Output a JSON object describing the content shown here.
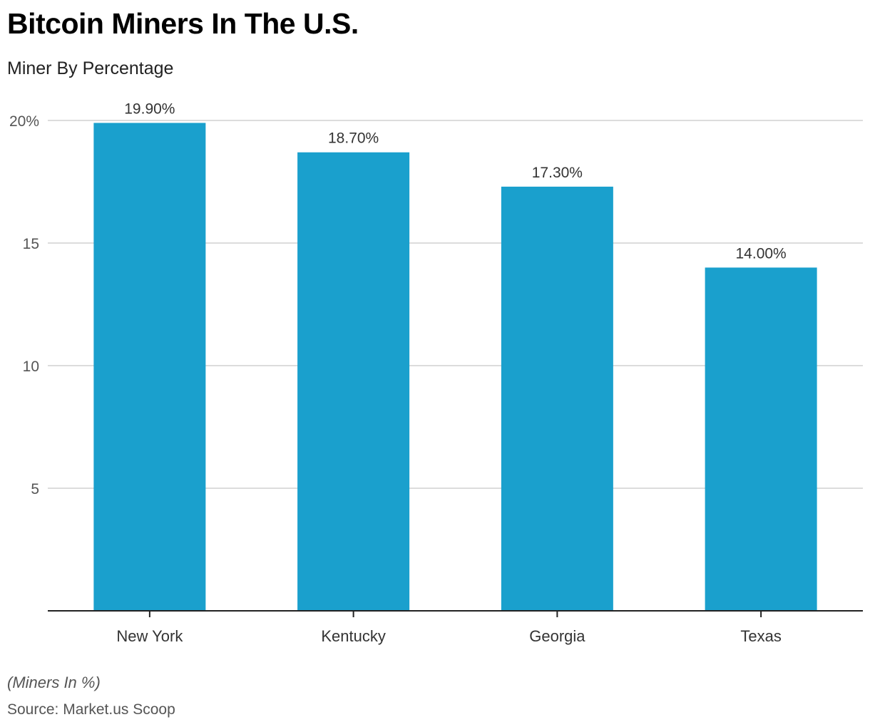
{
  "chart_data": {
    "type": "bar",
    "title": "Bitcoin Miners In The U.S.",
    "subtitle": "Miner By Percentage",
    "categories": [
      "New York",
      "Kentucky",
      "Georgia",
      "Texas"
    ],
    "values": [
      19.9,
      18.7,
      17.3,
      14.0
    ],
    "data_labels": [
      "19.90%",
      "18.70%",
      "17.30%",
      "14.00%"
    ],
    "y_ticks": [
      5,
      10,
      15,
      20
    ],
    "y_tick_labels": [
      "5",
      "10",
      "15",
      "20%"
    ],
    "ylim": [
      0,
      20
    ],
    "grid": true,
    "bar_color": "#1aa0cd",
    "note": "(Miners In %)",
    "source": "Source: Market.us Scoop"
  }
}
